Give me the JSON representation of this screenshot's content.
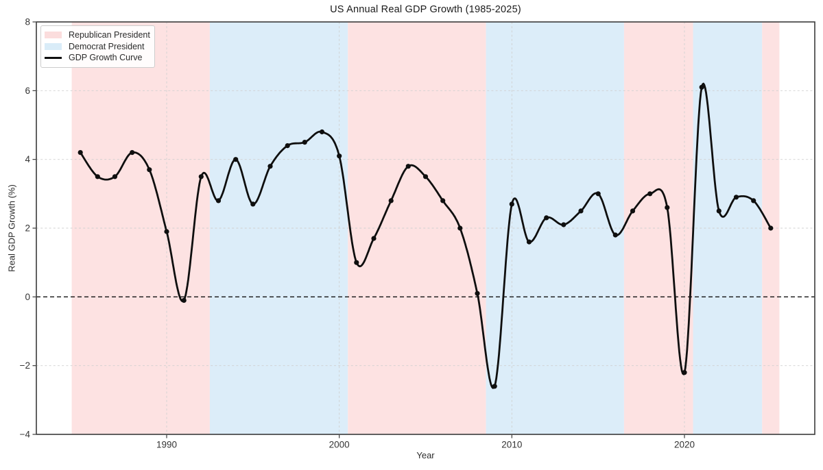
{
  "chart_data": {
    "type": "line",
    "title": "US Annual Real GDP Growth (1985-2025)",
    "xlabel": "Year",
    "ylabel": "Real GDP Growth (%)",
    "xlim": [
      1982.45,
      2027.55
    ],
    "ylim": [
      -4,
      8
    ],
    "xticks": [
      1990,
      2000,
      2010,
      2020
    ],
    "yticks": [
      -4,
      -2,
      0,
      2,
      4,
      6,
      8
    ],
    "grid": "dashed",
    "zero_line": 0,
    "x": [
      1985,
      1986,
      1987,
      1988,
      1989,
      1990,
      1991,
      1992,
      1993,
      1994,
      1995,
      1996,
      1997,
      1998,
      1999,
      2000,
      2001,
      2002,
      2003,
      2004,
      2005,
      2006,
      2007,
      2008,
      2009,
      2010,
      2011,
      2012,
      2013,
      2014,
      2015,
      2016,
      2017,
      2018,
      2019,
      2020,
      2021,
      2022,
      2023,
      2024,
      2025
    ],
    "series": [
      {
        "name": "GDP Growth Curve",
        "values": [
          4.2,
          3.5,
          3.5,
          4.2,
          3.7,
          1.9,
          -0.1,
          3.5,
          2.8,
          4.0,
          2.7,
          3.8,
          4.4,
          4.5,
          4.8,
          4.1,
          1.0,
          1.7,
          2.8,
          3.8,
          3.5,
          2.8,
          2.0,
          0.1,
          -2.6,
          2.7,
          1.6,
          2.3,
          2.1,
          2.5,
          3.0,
          1.8,
          2.5,
          3.0,
          2.6,
          -2.2,
          6.1,
          2.5,
          2.9,
          2.8,
          2.0
        ]
      }
    ],
    "bands": [
      {
        "party": "republican",
        "start": 1984.5,
        "end": 1992.5
      },
      {
        "party": "democrat",
        "start": 1992.5,
        "end": 2000.5
      },
      {
        "party": "republican",
        "start": 2000.5,
        "end": 2008.5
      },
      {
        "party": "democrat",
        "start": 2008.5,
        "end": 2016.5
      },
      {
        "party": "republican",
        "start": 2016.5,
        "end": 2020.5
      },
      {
        "party": "democrat",
        "start": 2020.5,
        "end": 2024.5
      },
      {
        "party": "republican",
        "start": 2024.5,
        "end": 2025.5
      }
    ],
    "legend": [
      {
        "label": "Republican President",
        "swatch": "patch",
        "color": "#fbdddd"
      },
      {
        "label": "Democrat President",
        "swatch": "patch",
        "color": "#d9ecf8"
      },
      {
        "label": "GDP Growth Curve",
        "swatch": "line",
        "color": "#0f0f0f"
      }
    ],
    "legend_position": "upper left",
    "colors": {
      "republican_band": "#fde2e2",
      "democrat_band": "#dcedf9",
      "line": "#0f0f0f",
      "grid": "#d0d0d0",
      "spine": "#3a3a3a",
      "tick_text": "#333333",
      "zero_line": "#111111"
    }
  }
}
